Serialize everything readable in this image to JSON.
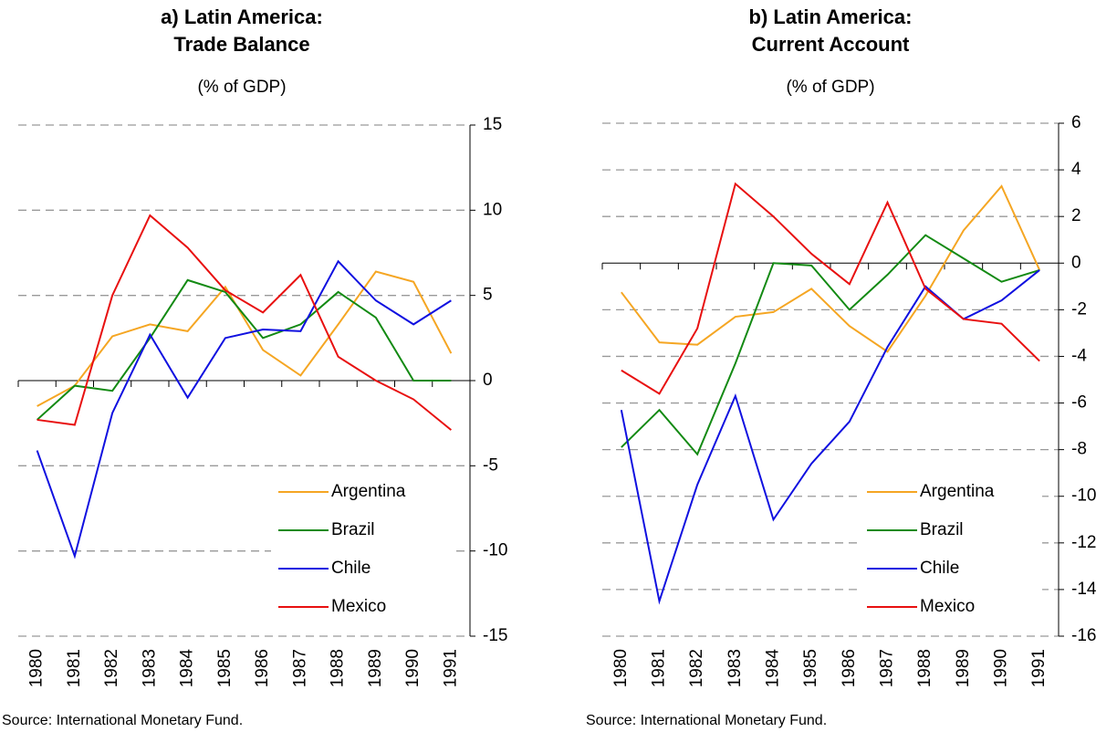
{
  "chart_data": [
    {
      "type": "line",
      "title": [
        "a) Latin America:",
        "Trade Balance"
      ],
      "subtitle": "(% of GDP)",
      "categories": [
        "1980",
        "1981",
        "1982",
        "1983",
        "1984",
        "1985",
        "1986",
        "1987",
        "1988",
        "1989",
        "1990",
        "1991"
      ],
      "series": [
        {
          "name": "Argentina",
          "color": "#f5a623",
          "values": [
            -1.5,
            -0.3,
            2.6,
            3.3,
            2.9,
            5.5,
            1.8,
            0.3,
            3.3,
            6.4,
            5.8,
            1.6
          ]
        },
        {
          "name": "Brazil",
          "color": "#138a13",
          "values": [
            -2.3,
            -0.3,
            -0.6,
            2.5,
            5.9,
            5.2,
            2.5,
            3.3,
            5.2,
            3.7,
            0,
            0
          ]
        },
        {
          "name": "Chile",
          "color": "#1010e0",
          "values": [
            -4.1,
            -10.3,
            -1.9,
            2.7,
            -1.0,
            2.5,
            3.0,
            2.9,
            7.0,
            4.7,
            3.3,
            4.7
          ]
        },
        {
          "name": "Mexico",
          "color": "#e81010",
          "values": [
            -2.3,
            -2.6,
            5.0,
            9.7,
            7.8,
            5.3,
            4.0,
            6.2,
            1.4,
            0.0,
            -1.1,
            -2.9
          ]
        }
      ],
      "ylim": [
        -15,
        15
      ],
      "yticks": [
        15,
        10,
        5,
        0,
        -5,
        -10,
        -15
      ],
      "grid": true,
      "legend": "lower right",
      "source": "Source: International Monetary Fund."
    },
    {
      "type": "line",
      "title": [
        "b) Latin America:",
        "Current Account"
      ],
      "subtitle": "(% of GDP)",
      "categories": [
        "1980",
        "1981",
        "1982",
        "1983",
        "1984",
        "1985",
        "1986",
        "1987",
        "1988",
        "1989",
        "1990",
        "1991"
      ],
      "series": [
        {
          "name": "Argentina",
          "color": "#f5a623",
          "values": [
            -1.25,
            -3.4,
            -3.5,
            -2.3,
            -2.1,
            -1.1,
            -2.7,
            -3.8,
            -1.4,
            1.4,
            3.3,
            -0.3
          ]
        },
        {
          "name": "Brazil",
          "color": "#138a13",
          "values": [
            -7.9,
            -6.3,
            -8.2,
            -4.3,
            0,
            -0.1,
            -2.0,
            -0.5,
            1.2,
            0.2,
            -0.8,
            -0.3
          ]
        },
        {
          "name": "Chile",
          "color": "#1010e0",
          "values": [
            -6.3,
            -14.5,
            -9.5,
            -5.7,
            -11.0,
            -8.6,
            -6.8,
            -3.6,
            -1.0,
            -2.4,
            -1.6,
            -0.3
          ]
        },
        {
          "name": "Mexico",
          "color": "#e81010",
          "values": [
            -4.6,
            -5.6,
            -2.8,
            3.4,
            2.0,
            0.4,
            -0.9,
            2.6,
            -1.1,
            -2.4,
            -2.6,
            -4.2
          ]
        }
      ],
      "ylim": [
        -16,
        6
      ],
      "yticks": [
        6,
        4,
        2,
        0,
        -2,
        -4,
        -6,
        -8,
        -10,
        -12,
        -14,
        -16
      ],
      "grid": true,
      "legend": "lower right",
      "source": "Source: International Monetary Fund."
    }
  ]
}
